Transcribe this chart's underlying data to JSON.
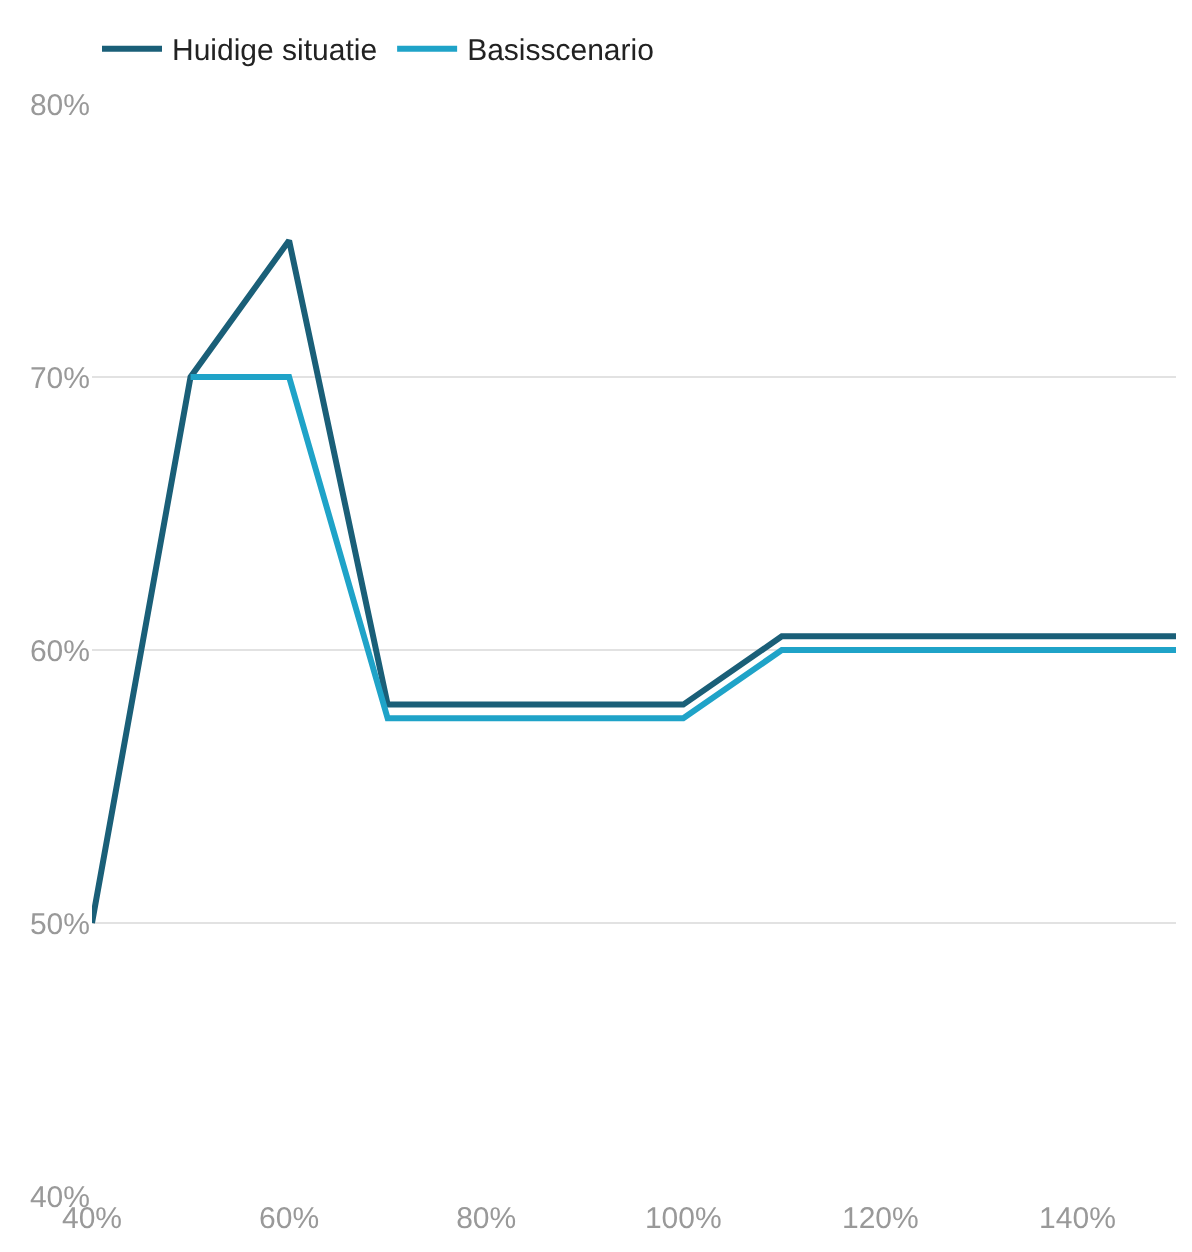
{
  "chart_data": {
    "type": "line",
    "x": [
      40,
      50,
      60,
      70,
      100,
      110,
      150
    ],
    "series": [
      {
        "name": "Huidige situatie",
        "color": "#1a5f78",
        "values": [
          50,
          70,
          75,
          58,
          58,
          60.5,
          60.5
        ]
      },
      {
        "name": "Basisscenario",
        "color": "#1fa3c8",
        "values": [
          null,
          70,
          70,
          57.5,
          57.5,
          60,
          60
        ]
      }
    ],
    "xlim": [
      40,
      150
    ],
    "xticks": [
      {
        "value": 40,
        "label": "40%"
      },
      {
        "value": 60,
        "label": "60%"
      },
      {
        "value": 80,
        "label": "80%"
      },
      {
        "value": 100,
        "label": "100%"
      },
      {
        "value": 120,
        "label": "120%"
      },
      {
        "value": 140,
        "label": "140%"
      }
    ],
    "ylim": [
      40,
      80
    ],
    "yticks": [
      {
        "value": 40,
        "label": "40%"
      },
      {
        "value": 50,
        "label": "50%"
      },
      {
        "value": 60,
        "label": "60%"
      },
      {
        "value": 70,
        "label": "70%"
      },
      {
        "value": 80,
        "label": "80%"
      }
    ],
    "grid": "y",
    "legend": "top left",
    "marker": "none",
    "line_style": "solid"
  }
}
